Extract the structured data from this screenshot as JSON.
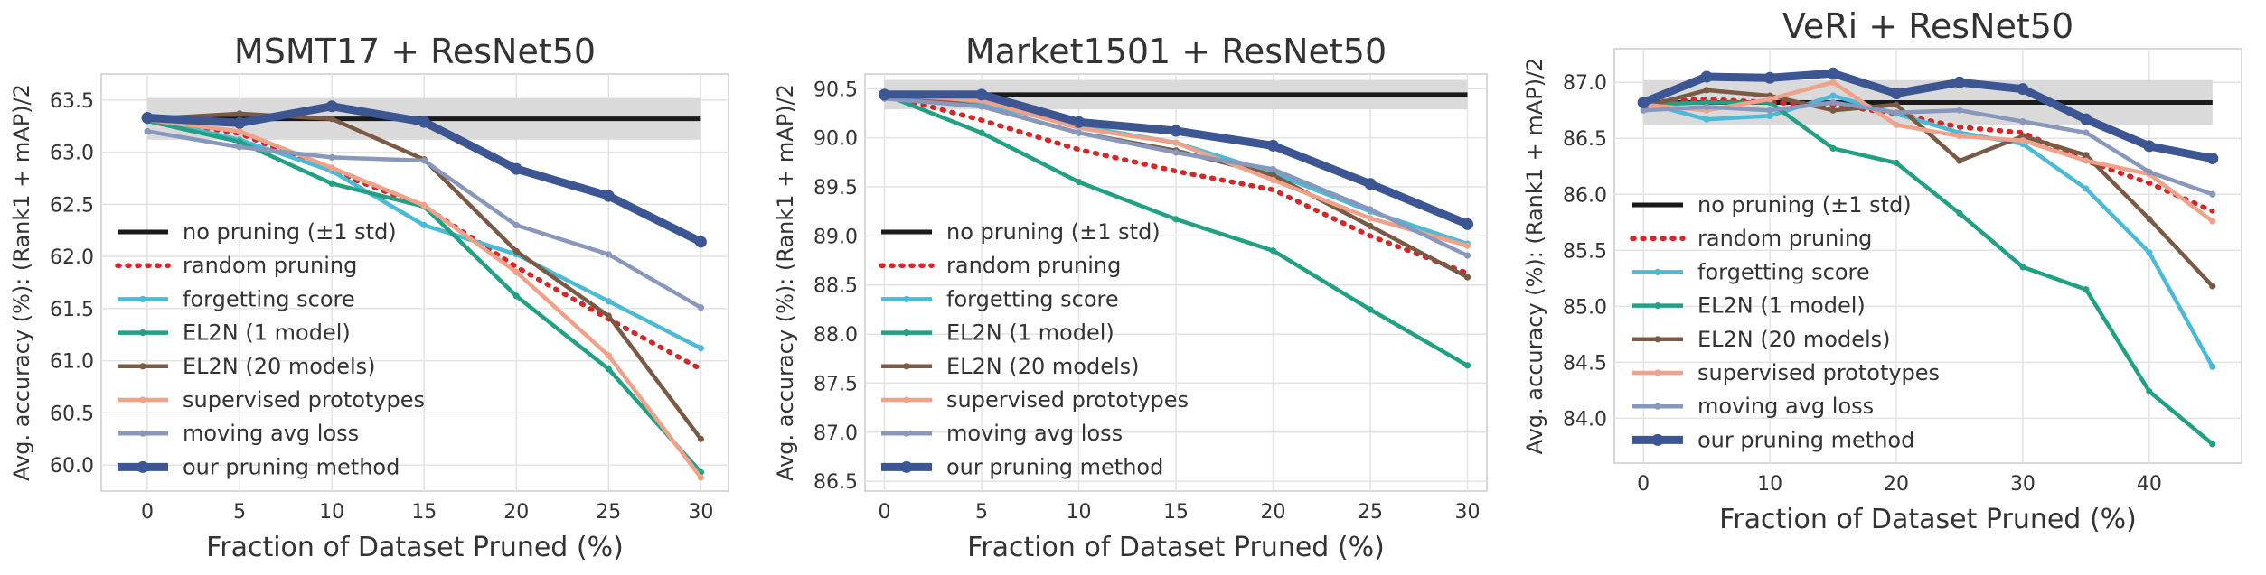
{
  "figure": {
    "shared_ylabel": "Avg. accuracy (%): (Rank1 + mAP)/2",
    "shared_xlabel": "Fraction of Dataset Pruned (%)"
  },
  "styles": {
    "no_pruning": {
      "color": "#1a1a1a",
      "dash": "none",
      "marker": false
    },
    "random": {
      "color": "#d62728",
      "dash": "dotted",
      "marker": false
    },
    "forgetting": {
      "color": "#4bbad6",
      "dash": "none",
      "marker": true
    },
    "el2n1": {
      "color": "#21a084",
      "dash": "none",
      "marker": true
    },
    "el2n20": {
      "color": "#7a5a45",
      "dash": "none",
      "marker": true
    },
    "prototypes": {
      "color": "#f0a18a",
      "dash": "none",
      "marker": true
    },
    "avgloss": {
      "color": "#8897bc",
      "dash": "none",
      "marker": true
    },
    "ours": {
      "color": "#3c5593",
      "dash": "none",
      "marker": true
    },
    "band": "#d8d8d8",
    "grid": "#e3e3e3"
  },
  "chart_data": [
    {
      "type": "line",
      "title": "MSMT17 + ResNet50",
      "xlabel": "Fraction of Dataset Pruned (%)",
      "ylabel": "Avg. accuracy (%): (Rank1 + mAP)/2",
      "xlim": [
        -2.5,
        31.5
      ],
      "ylim": [
        59.75,
        63.75
      ],
      "xticks": [
        0,
        5,
        10,
        15,
        20,
        25,
        30
      ],
      "yticks": [
        60.0,
        60.5,
        61.0,
        61.5,
        62.0,
        62.5,
        63.0,
        63.5
      ],
      "ytick_labels": [
        "60.0",
        "60.5",
        "61.0",
        "61.5",
        "62.0",
        "62.5",
        "63.0",
        "63.5"
      ],
      "grid": true,
      "legend_location": "lower-left",
      "baseline": {
        "name": "no pruning (±1 std)",
        "value": 63.32,
        "std": 0.2,
        "x_range": [
          0,
          30
        ]
      },
      "series": [
        {
          "key": "random",
          "name": "random pruning",
          "x": [
            0,
            5,
            10,
            15,
            20,
            25,
            30
          ],
          "values": [
            63.32,
            63.18,
            62.82,
            62.48,
            61.9,
            61.4,
            60.92
          ]
        },
        {
          "key": "forgetting",
          "name": "forgetting score",
          "x": [
            0,
            5,
            10,
            15,
            20,
            25,
            30
          ],
          "values": [
            63.32,
            63.12,
            62.82,
            62.3,
            62.02,
            61.57,
            61.12
          ]
        },
        {
          "key": "el2n1",
          "name": "EL2N (1 model)",
          "x": [
            0,
            5,
            10,
            15,
            20,
            25,
            30
          ],
          "values": [
            63.3,
            63.1,
            62.7,
            62.48,
            61.62,
            60.92,
            59.93
          ]
        },
        {
          "key": "el2n20",
          "name": "EL2N (20 models)",
          "x": [
            0,
            5,
            10,
            15,
            20,
            25,
            30
          ],
          "values": [
            63.32,
            63.37,
            63.32,
            62.93,
            62.05,
            61.43,
            60.25
          ]
        },
        {
          "key": "prototypes",
          "name": "supervised prototypes",
          "x": [
            0,
            5,
            10,
            15,
            20,
            25,
            30
          ],
          "values": [
            63.31,
            63.2,
            62.85,
            62.49,
            61.85,
            61.05,
            59.88
          ]
        },
        {
          "key": "avgloss",
          "name": "moving avg loss",
          "x": [
            0,
            5,
            10,
            15,
            20,
            25,
            30
          ],
          "values": [
            63.2,
            63.05,
            62.95,
            62.92,
            62.3,
            62.02,
            61.51
          ]
        },
        {
          "key": "ours",
          "name": "our pruning method",
          "x": [
            0,
            5,
            10,
            15,
            20,
            25,
            30
          ],
          "values": [
            63.33,
            63.28,
            63.44,
            63.29,
            62.84,
            62.58,
            62.14
          ]
        }
      ]
    },
    {
      "type": "line",
      "title": "Market1501 + ResNet50",
      "xlabel": "Fraction of Dataset Pruned (%)",
      "ylabel": "Avg. accuracy (%): (Rank1 + mAP)/2",
      "xlim": [
        -1,
        31
      ],
      "ylim": [
        86.4,
        90.65
      ],
      "xticks": [
        0,
        5,
        10,
        15,
        20,
        25,
        30
      ],
      "yticks": [
        86.5,
        87.0,
        87.5,
        88.0,
        88.5,
        89.0,
        89.5,
        90.0,
        90.5
      ],
      "ytick_labels": [
        "86.5",
        "87.0",
        "87.5",
        "88.0",
        "88.5",
        "89.0",
        "89.5",
        "90.0",
        "90.5"
      ],
      "grid": true,
      "legend_location": "lower-left",
      "baseline": {
        "name": "no pruning (±1 std)",
        "value": 90.44,
        "std": 0.15,
        "x_range": [
          0,
          30
        ]
      },
      "series": [
        {
          "key": "random",
          "name": "random pruning",
          "x": [
            0,
            5,
            10,
            15,
            20,
            25,
            30
          ],
          "values": [
            90.44,
            90.18,
            89.88,
            89.66,
            89.47,
            89.0,
            88.62
          ]
        },
        {
          "key": "forgetting",
          "name": "forgetting score",
          "x": [
            0,
            5,
            10,
            15,
            20,
            25,
            30
          ],
          "values": [
            90.44,
            90.35,
            90.12,
            89.95,
            89.64,
            89.25,
            88.92
          ]
        },
        {
          "key": "el2n1",
          "name": "EL2N (1 model)",
          "x": [
            0,
            5,
            10,
            15,
            20,
            25,
            30
          ],
          "values": [
            90.44,
            90.05,
            89.55,
            89.17,
            88.85,
            88.25,
            87.68
          ]
        },
        {
          "key": "el2n20",
          "name": "EL2N (20 models)",
          "x": [
            0,
            5,
            10,
            15,
            20,
            25,
            30
          ],
          "values": [
            90.44,
            90.32,
            90.05,
            89.87,
            89.62,
            89.1,
            88.58
          ]
        },
        {
          "key": "prototypes",
          "name": "supervised prototypes",
          "x": [
            0,
            5,
            10,
            15,
            20,
            25,
            30
          ],
          "values": [
            90.44,
            90.38,
            90.1,
            89.95,
            89.57,
            89.18,
            88.9
          ]
        },
        {
          "key": "avgloss",
          "name": "moving avg loss",
          "x": [
            0,
            5,
            10,
            15,
            20,
            25,
            30
          ],
          "values": [
            90.4,
            90.32,
            90.05,
            89.85,
            89.68,
            89.27,
            88.8
          ]
        },
        {
          "key": "ours",
          "name": "our pruning method",
          "x": [
            0,
            5,
            10,
            15,
            20,
            25,
            30
          ],
          "values": [
            90.44,
            90.44,
            90.16,
            90.07,
            89.92,
            89.53,
            89.12
          ]
        }
      ]
    },
    {
      "type": "line",
      "title": "VeRi + ResNet50",
      "xlabel": "Fraction of Dataset Pruned (%)",
      "ylabel": "Avg. accuracy (%): (Rank1 + mAP)/2",
      "xlim": [
        -2.3,
        47.3
      ],
      "ylim": [
        83.6,
        87.3
      ],
      "xticks": [
        0,
        10,
        20,
        30,
        40
      ],
      "yticks": [
        84.0,
        84.5,
        85.0,
        85.5,
        86.0,
        86.5,
        87.0
      ],
      "ytick_labels": [
        "84.0",
        "84.5",
        "85.0",
        "85.5",
        "86.0",
        "86.5",
        "87.0"
      ],
      "grid": true,
      "legend_location": "left",
      "baseline": {
        "name": "no pruning (±1 std)",
        "value": 86.82,
        "std": 0.2,
        "x_range": [
          0,
          45
        ]
      },
      "series": [
        {
          "key": "random",
          "name": "random pruning",
          "x": [
            0,
            5,
            10,
            15,
            20,
            25,
            30,
            35,
            40,
            45
          ],
          "values": [
            86.82,
            86.85,
            86.82,
            86.8,
            86.72,
            86.6,
            86.55,
            86.3,
            86.1,
            85.85
          ]
        },
        {
          "key": "forgetting",
          "name": "forgetting score",
          "x": [
            0,
            5,
            10,
            15,
            20,
            25,
            30,
            35,
            40,
            45
          ],
          "values": [
            86.82,
            86.67,
            86.7,
            86.88,
            86.72,
            86.55,
            86.45,
            86.05,
            85.48,
            84.46
          ]
        },
        {
          "key": "el2n1",
          "name": "EL2N (1 model)",
          "x": [
            0,
            5,
            10,
            15,
            20,
            25,
            30,
            35,
            40,
            45
          ],
          "values": [
            86.8,
            86.82,
            86.82,
            86.41,
            86.28,
            85.83,
            85.35,
            85.15,
            84.24,
            83.77
          ]
        },
        {
          "key": "el2n20",
          "name": "EL2N (20 models)",
          "x": [
            0,
            5,
            10,
            15,
            20,
            25,
            30,
            35,
            40,
            45
          ],
          "values": [
            86.78,
            86.93,
            86.88,
            86.75,
            86.8,
            86.3,
            86.52,
            86.35,
            85.78,
            85.18
          ]
        },
        {
          "key": "prototypes",
          "name": "supervised prototypes",
          "x": [
            0,
            5,
            10,
            15,
            20,
            25,
            30,
            35,
            40,
            45
          ],
          "values": [
            86.8,
            86.75,
            86.85,
            87.0,
            86.62,
            86.52,
            86.48,
            86.3,
            86.18,
            85.76
          ]
        },
        {
          "key": "avgloss",
          "name": "moving avg loss",
          "x": [
            0,
            5,
            10,
            15,
            20,
            25,
            30,
            35,
            40,
            45
          ],
          "values": [
            86.75,
            86.78,
            86.75,
            86.82,
            86.73,
            86.75,
            86.65,
            86.55,
            86.2,
            86.0
          ]
        },
        {
          "key": "ours",
          "name": "our pruning method",
          "x": [
            0,
            5,
            10,
            15,
            20,
            25,
            30,
            35,
            40,
            45
          ],
          "values": [
            86.82,
            87.05,
            87.04,
            87.08,
            86.9,
            87.0,
            86.94,
            86.67,
            86.43,
            86.32
          ]
        }
      ]
    }
  ]
}
